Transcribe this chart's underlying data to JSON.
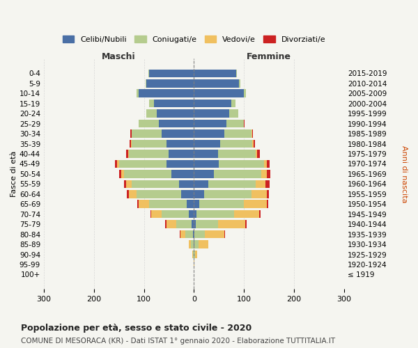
{
  "age_groups": [
    "100+",
    "95-99",
    "90-94",
    "85-89",
    "80-84",
    "75-79",
    "70-74",
    "65-69",
    "60-64",
    "55-59",
    "50-54",
    "45-49",
    "40-44",
    "35-39",
    "30-34",
    "25-29",
    "20-24",
    "15-19",
    "10-14",
    "5-9",
    "0-4"
  ],
  "birth_years": [
    "≤ 1919",
    "1920-1924",
    "1925-1929",
    "1930-1934",
    "1935-1939",
    "1940-1944",
    "1945-1949",
    "1950-1954",
    "1955-1959",
    "1960-1964",
    "1965-1969",
    "1970-1974",
    "1975-1979",
    "1980-1984",
    "1985-1989",
    "1990-1994",
    "1995-1999",
    "2000-2004",
    "2005-2009",
    "2010-2014",
    "2015-2019"
  ],
  "colors": {
    "celibe": "#4a6fa5",
    "coniugato": "#b5cc8e",
    "vedovo": "#f0c060",
    "divorziato": "#cc2222"
  },
  "males": {
    "celibe": [
      0,
      0,
      0,
      1,
      2,
      5,
      10,
      15,
      25,
      30,
      45,
      55,
      50,
      55,
      65,
      70,
      75,
      80,
      110,
      95,
      90
    ],
    "coniugato": [
      0,
      0,
      2,
      5,
      15,
      30,
      55,
      75,
      90,
      95,
      95,
      95,
      80,
      70,
      60,
      40,
      20,
      10,
      5,
      2,
      1
    ],
    "vedovo": [
      0,
      0,
      2,
      5,
      10,
      20,
      20,
      20,
      15,
      10,
      5,
      3,
      2,
      1,
      0,
      0,
      0,
      0,
      0,
      0,
      0
    ],
    "divorziato": [
      0,
      0,
      0,
      0,
      1,
      2,
      2,
      3,
      4,
      5,
      5,
      5,
      4,
      3,
      2,
      1,
      0,
      0,
      0,
      0,
      0
    ]
  },
  "females": {
    "nubile": [
      0,
      0,
      0,
      1,
      1,
      3,
      5,
      10,
      20,
      28,
      40,
      50,
      48,
      52,
      60,
      65,
      70,
      75,
      100,
      90,
      85
    ],
    "coniugata": [
      0,
      0,
      2,
      8,
      20,
      45,
      75,
      90,
      95,
      95,
      95,
      90,
      75,
      65,
      55,
      35,
      18,
      8,
      4,
      2,
      1
    ],
    "vedova": [
      0,
      1,
      5,
      20,
      40,
      55,
      50,
      45,
      30,
      20,
      10,
      5,
      3,
      2,
      1,
      0,
      0,
      0,
      0,
      0,
      0
    ],
    "divorziata": [
      0,
      0,
      0,
      0,
      1,
      2,
      3,
      4,
      5,
      8,
      8,
      6,
      5,
      3,
      2,
      1,
      0,
      0,
      0,
      0,
      0
    ]
  },
  "title": "Popolazione per età, sesso e stato civile - 2020",
  "subtitle": "COMUNE DI MESORACA (KR) - Dati ISTAT 1° gennaio 2020 - Elaborazione TUTTITALIA.IT",
  "xlabel_left": "Maschi",
  "xlabel_right": "Femmine",
  "ylabel_left": "Fasce di età",
  "ylabel_right": "Anni di nascita",
  "xlim": 300,
  "legend_labels": [
    "Celibi/Nubili",
    "Coniugati/e",
    "Vedovi/e",
    "Divorziati/e"
  ]
}
